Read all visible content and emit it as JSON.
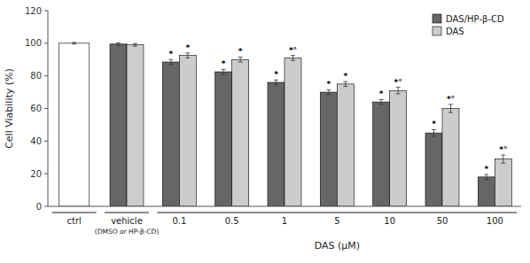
{
  "chart_data": {
    "type": "bar",
    "categories": [
      "ctrl",
      "vehicle\n(DMSO or HP-β-CD)",
      "0.1",
      "0.5",
      "1",
      "5",
      "10",
      "50",
      "100"
    ],
    "x_label": "DAS (μM)",
    "y_label": "Cell Viability (%)",
    "ylim": [
      0,
      120
    ],
    "yticks": [
      0,
      20,
      40,
      60,
      80,
      100,
      120
    ],
    "grid": false,
    "legend": "upper right",
    "series": [
      {
        "name": "DAS/HP-β-CD",
        "color": "#666666",
        "colors": [
          "#ffffff",
          "#666666",
          "#666666",
          "#666666",
          "#666666",
          "#666666",
          "#666666",
          "#666666",
          "#666666"
        ],
        "values": [
          100,
          99.5,
          88.5,
          82.5,
          76,
          70,
          64,
          45,
          18
        ],
        "errors": [
          0.5,
          0.8,
          1.5,
          1.5,
          1.5,
          1.5,
          1.5,
          2.0,
          1.5
        ],
        "annotations": [
          null,
          null,
          "*",
          "*",
          "*",
          "*",
          "*",
          "*",
          "*"
        ]
      },
      {
        "name": "DAS",
        "color": "#cccccc",
        "values": [
          null,
          99,
          92.5,
          90,
          91,
          75,
          71,
          60,
          29
        ],
        "errors": [
          null,
          0.8,
          1.5,
          1.5,
          1.5,
          1.5,
          2.0,
          2.5,
          2.5
        ],
        "annotations": [
          null,
          null,
          "*",
          "*",
          "*°",
          "*",
          "*°",
          "*°",
          "*°"
        ]
      }
    ]
  }
}
